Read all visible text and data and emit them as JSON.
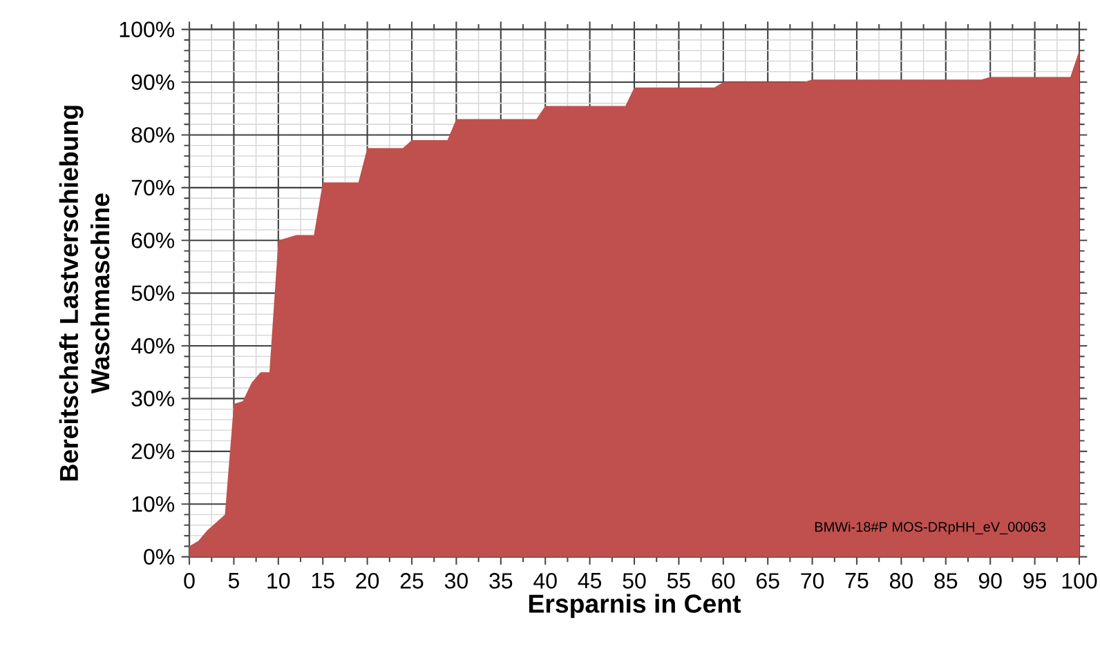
{
  "chart_data": {
    "type": "area",
    "xlabel": "Ersparnis in Cent",
    "ylabel": "Bereitschaft Lastverschiebung Waschmaschine",
    "x": [
      0,
      1,
      2,
      3,
      4,
      5,
      6,
      7,
      8,
      9,
      10,
      11,
      12,
      14,
      15,
      19,
      20,
      24,
      25,
      29,
      30,
      39,
      40,
      49,
      50,
      59,
      60,
      69,
      70,
      89,
      90,
      99,
      100
    ],
    "values": [
      2,
      3,
      5,
      6.5,
      8,
      29,
      29.5,
      33,
      35,
      35,
      60,
      60.5,
      61,
      61,
      71,
      71,
      77.5,
      77.5,
      79,
      79,
      83,
      83,
      85.5,
      85.5,
      89,
      89,
      90,
      90,
      90.5,
      90.5,
      91,
      91,
      96
    ],
    "color": "#c0504d",
    "xlim": [
      0,
      100
    ],
    "ylim": [
      0,
      100
    ],
    "xticks": [
      0,
      5,
      10,
      15,
      20,
      25,
      30,
      35,
      40,
      45,
      50,
      55,
      60,
      65,
      70,
      75,
      80,
      85,
      90,
      95,
      100
    ],
    "yticks": [
      {
        "value": 0,
        "label": "0%"
      },
      {
        "value": 10,
        "label": "10%"
      },
      {
        "value": 20,
        "label": "20%"
      },
      {
        "value": 30,
        "label": "30%"
      },
      {
        "value": 40,
        "label": "40%"
      },
      {
        "value": 50,
        "label": "50%"
      },
      {
        "value": 60,
        "label": "60%"
      },
      {
        "value": 70,
        "label": "70%"
      },
      {
        "value": 80,
        "label": "80%"
      },
      {
        "value": 90,
        "label": "90%"
      },
      {
        "value": 100,
        "label": "100%"
      }
    ],
    "grid": true,
    "annotations": [
      "BMWi-18#P MOS-DRpHH_eV_00063"
    ]
  }
}
